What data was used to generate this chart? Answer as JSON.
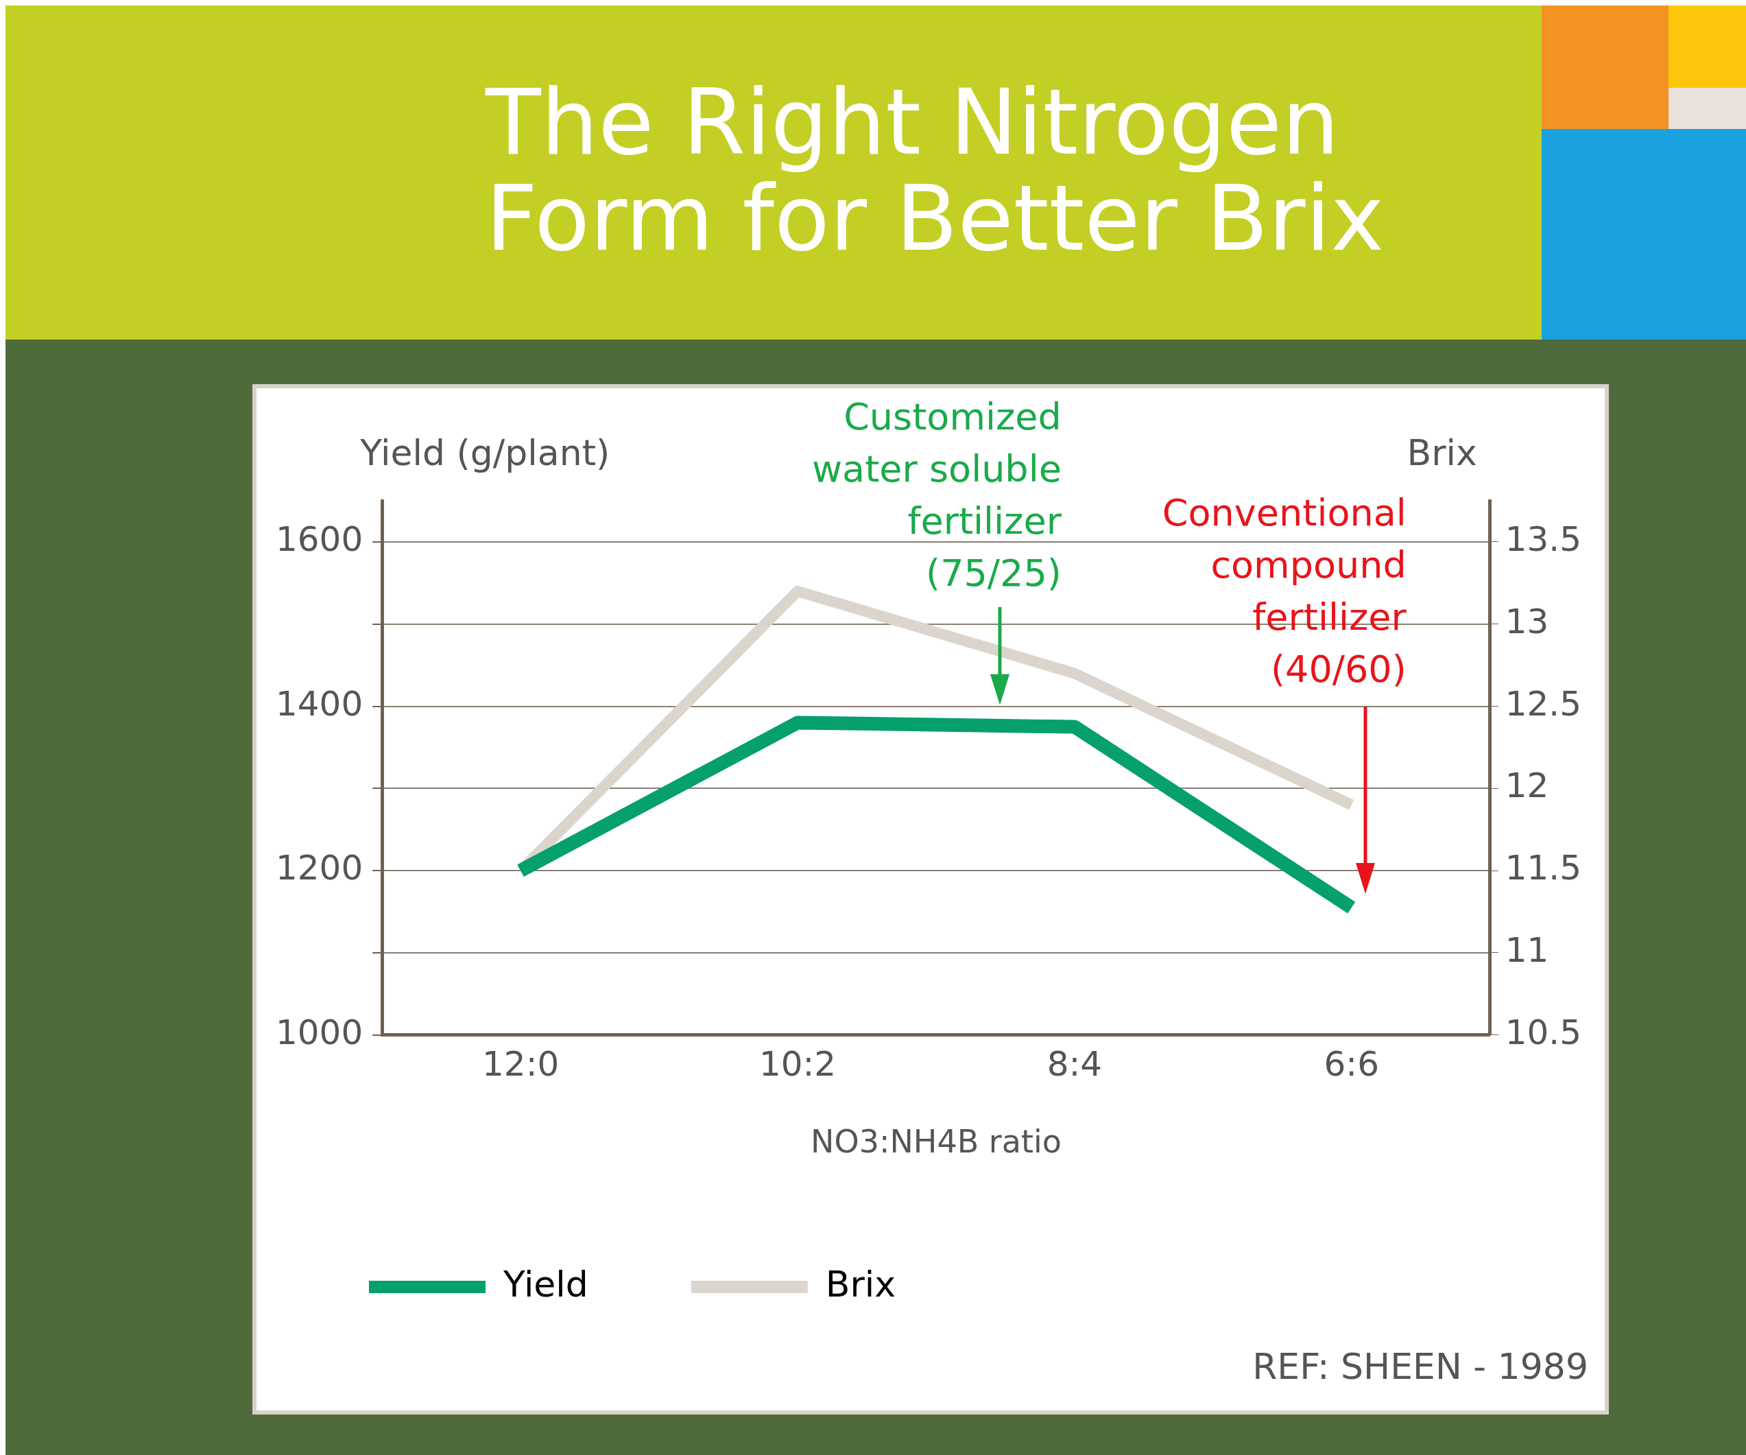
{
  "chart_data": {
    "type": "line",
    "title": "The Right Nitrogen Form for Better Brix",
    "xlabel": "NO3:NH4B ratio",
    "ylabel": "Yield (g/plant)",
    "y2label": "Brix",
    "categories": [
      "12:0",
      "10:2",
      "8:4",
      "6:6"
    ],
    "series": [
      {
        "name": "Yield",
        "color": "#05a06c",
        "values": [
          1200,
          1380,
          1375,
          1155
        ]
      },
      {
        "name": "Brix",
        "color": "#dcd5ce",
        "values": [
          11.5,
          13.2,
          12.7,
          11.9
        ],
        "axis": "y2"
      }
    ],
    "ylim": [
      1000,
      1650
    ],
    "yticks": [
      1000,
      {
        "value": 1100,
        "label": null
      },
      1200,
      {
        "value": 1300,
        "label": null
      },
      1400,
      {
        "value": 1500,
        "label": null
      },
      1600
    ],
    "y2lim": [
      10.5,
      13.75
    ],
    "y2ticks": [
      10.5,
      11,
      11.5,
      12,
      12.5,
      13,
      13.5
    ],
    "grid": "y",
    "legend": "bottom",
    "marker": "none",
    "line_style": "solid",
    "annotations": [
      "Customized water soluble fertilizer (75/25)",
      "Conventional compound fertilizer (40/60)",
      "REF: SHEEN - 1989"
    ]
  }
}
